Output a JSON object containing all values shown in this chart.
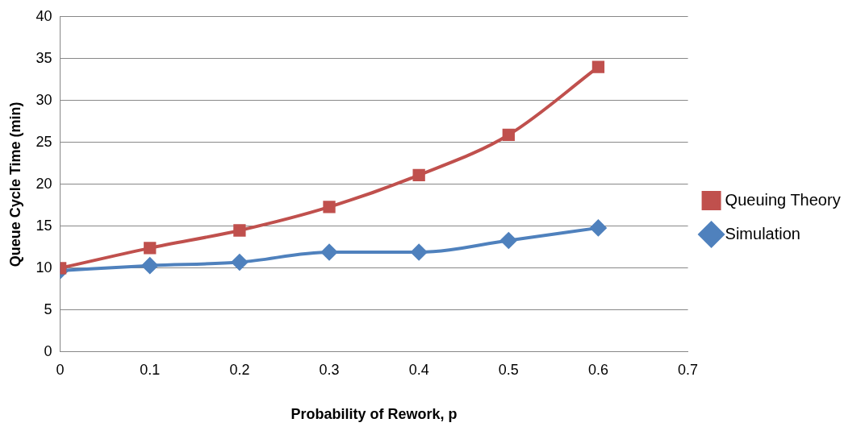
{
  "chart_data": {
    "type": "line",
    "xlabel": "Probability of Rework, p",
    "ylabel": "Queue Cycle Time (min)",
    "x": [
      0,
      0.1,
      0.2,
      0.3,
      0.4,
      0.5,
      0.6
    ],
    "series": [
      {
        "name": "Queuing Theory",
        "color": "#c0504d",
        "marker": "square",
        "values": [
          10.0,
          12.4,
          14.5,
          17.3,
          21.1,
          25.9,
          34.0
        ]
      },
      {
        "name": "Simulation",
        "color": "#4f81bd",
        "marker": "diamond",
        "values": [
          9.7,
          10.3,
          10.7,
          11.9,
          11.9,
          13.3,
          14.8
        ]
      }
    ],
    "xlim": [
      0,
      0.7
    ],
    "xticks": [
      0,
      0.1,
      0.2,
      0.3,
      0.4,
      0.5,
      0.6,
      0.7
    ],
    "ylim": [
      0,
      40
    ],
    "yticks": [
      0,
      5,
      10,
      15,
      20,
      25,
      30,
      35,
      40
    ],
    "grid": "y",
    "legend": "right",
    "line_style": "solid"
  }
}
